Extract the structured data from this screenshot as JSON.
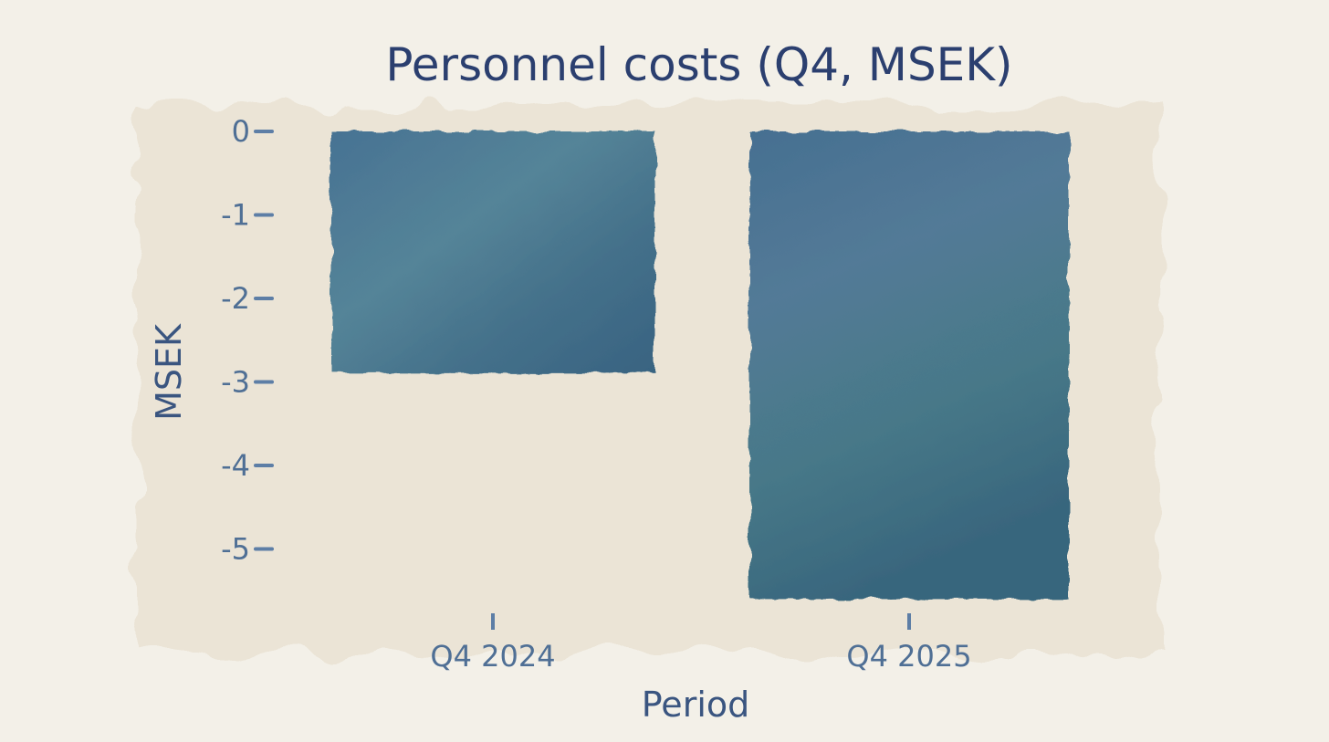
{
  "chart_data": {
    "type": "bar",
    "title": "Personnel costs (Q4, MSEK)",
    "xlabel": "Period",
    "ylabel": "MSEK",
    "categories": [
      "Q4 2024",
      "Q4 2025"
    ],
    "values": [
      -2.9,
      -5.6
    ],
    "ylim": [
      -5.6,
      0
    ],
    "yticks": [
      0,
      -1,
      -2,
      -3,
      -4,
      -5
    ],
    "ytick_labels": [
      "0",
      "-1",
      "-2",
      "-3",
      "-4",
      "-5"
    ],
    "grid": false,
    "legend": "none"
  },
  "colors": {
    "background": "#f3f0e8",
    "wash": "#eae3d4",
    "bar": "#3e6b8a",
    "bar_dark": "#2a4d73",
    "axis": "#5d7ea6",
    "title": "#2b3f6f"
  }
}
